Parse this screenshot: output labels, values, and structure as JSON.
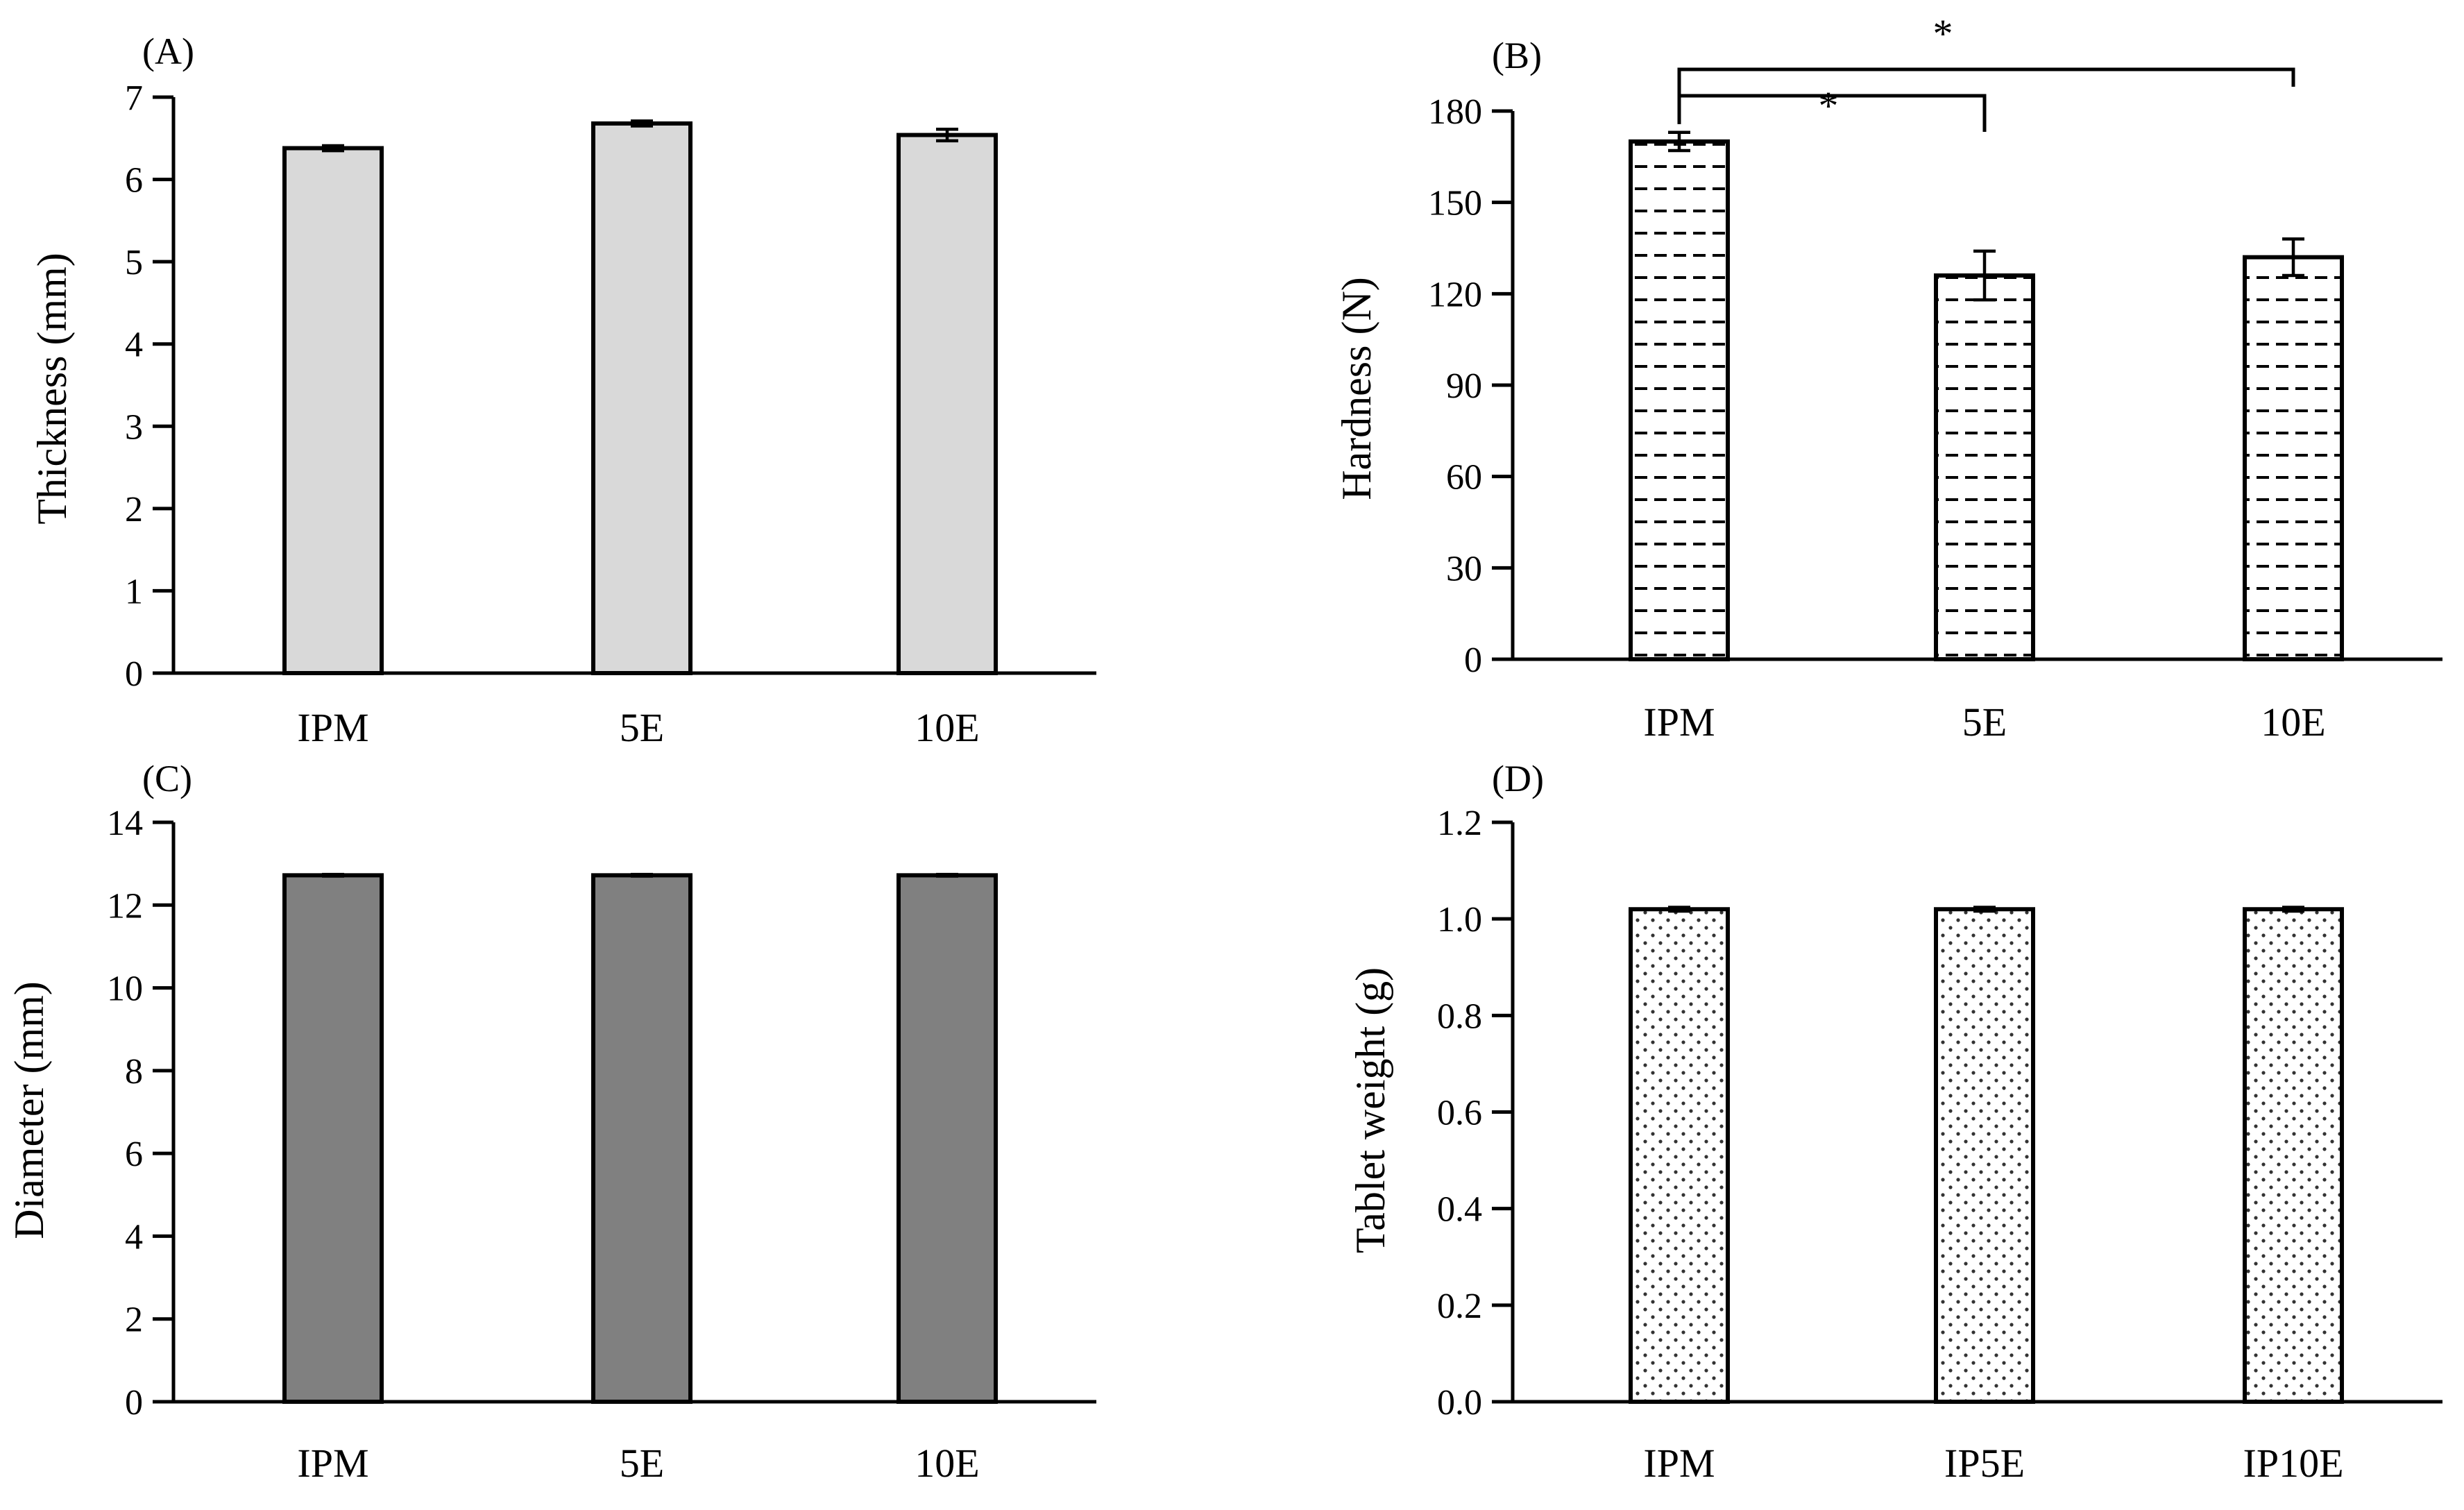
{
  "chart_data": [
    {
      "panel": "(A)",
      "type": "bar",
      "categories": [
        "IPM",
        "5E",
        "10E"
      ],
      "values": [
        6.38,
        6.68,
        6.54
      ],
      "errors": [
        0.03,
        0.03,
        0.07
      ],
      "ylabel": "Thickness (mm)",
      "ylim": [
        0,
        7
      ],
      "yticks": [
        "0",
        "1",
        "2",
        "3",
        "4",
        "5",
        "6",
        "7"
      ],
      "yticks_values": [
        0,
        1,
        2,
        3,
        4,
        5,
        6,
        7
      ],
      "bar_fill": "light-gray",
      "bar_color": "#d9d9d9",
      "significance": []
    },
    {
      "panel": "(B)",
      "type": "bar",
      "categories": [
        "IPM",
        "5E",
        "10E"
      ],
      "values": [
        170,
        126,
        132
      ],
      "errors": [
        3,
        8,
        6
      ],
      "ylabel": "Hardness (N)",
      "ylim": [
        0,
        180
      ],
      "yticks": [
        "0",
        "30",
        "60",
        "90",
        "120",
        "150",
        "180"
      ],
      "yticks_values": [
        0,
        30,
        60,
        90,
        120,
        150,
        180
      ],
      "bar_fill": "dashed-horizontal-pattern",
      "bar_color": "#ffffff",
      "significance": [
        {
          "from": 0,
          "to": 1,
          "label": "*"
        },
        {
          "from": 0,
          "to": 2,
          "label": "*"
        }
      ]
    },
    {
      "panel": "(C)",
      "type": "bar",
      "categories": [
        "IPM",
        "5E",
        "10E"
      ],
      "values": [
        12.72,
        12.72,
        12.72
      ],
      "errors": [
        0.02,
        0.02,
        0.02
      ],
      "ylabel": "Diameter (mm)",
      "ylim": [
        0,
        14
      ],
      "yticks": [
        "0",
        "2",
        "4",
        "6",
        "8",
        "10",
        "12",
        "14"
      ],
      "yticks_values": [
        0,
        2,
        4,
        6,
        8,
        10,
        12,
        14
      ],
      "bar_fill": "dark-gray",
      "bar_color": "#808080",
      "significance": []
    },
    {
      "panel": "(D)",
      "type": "bar",
      "categories": [
        "IPM",
        "IP5E",
        "IP10E"
      ],
      "values": [
        1.02,
        1.02,
        1.02
      ],
      "errors": [
        0.004,
        0.004,
        0.004
      ],
      "ylabel": "Tablet weight (g)",
      "ylim": [
        0,
        1.2
      ],
      "yticks": [
        "0.0",
        "0.2",
        "0.4",
        "0.6",
        "0.8",
        "1.0",
        "1.2"
      ],
      "yticks_values": [
        0,
        0.2,
        0.4,
        0.6,
        0.8,
        1.0,
        1.2
      ],
      "bar_fill": "dotted-pattern",
      "bar_color": "#ffffff",
      "significance": []
    }
  ]
}
